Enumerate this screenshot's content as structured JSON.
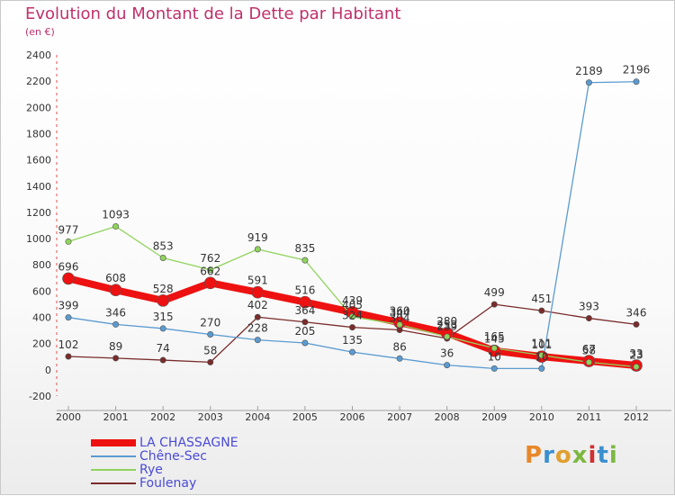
{
  "chart_data": {
    "type": "line",
    "title": "Evolution du Montant de la Dette par Habitant",
    "subtitle": "(en €)",
    "x": [
      "2000",
      "2001",
      "2002",
      "2003",
      "2004",
      "2005",
      "2006",
      "2007",
      "2008",
      "2009",
      "2010",
      "2011",
      "2012"
    ],
    "yticks": [
      "-200",
      "0",
      "200",
      "400",
      "600",
      "800",
      "1000",
      "1200",
      "1400",
      "1600",
      "1800",
      "2000",
      "2200",
      "2400"
    ],
    "ylim": [
      -200,
      2400
    ],
    "grid": false,
    "legend_position": "bottom-left",
    "series": [
      {
        "name": "LA CHASSAGNE",
        "color": "#ee1111",
        "values": [
          696,
          608,
          528,
          662,
          591,
          516,
          439,
          360,
          280,
          145,
          101,
          67,
          33
        ]
      },
      {
        "name": "Chêne-Sec",
        "color": "#5b9bd0",
        "values": [
          399,
          346,
          315,
          270,
          228,
          205,
          135,
          86,
          36,
          10,
          10,
          2189,
          2196
        ]
      },
      {
        "name": "Rye",
        "color": "#8fd35c",
        "values": [
          977,
          1093,
          853,
          762,
          919,
          835,
          405,
          344,
          253,
          165,
          111,
          58,
          23
        ]
      },
      {
        "name": "Foulenay",
        "color": "#7a2b2b",
        "values": [
          102,
          89,
          74,
          58,
          402,
          364,
          324,
          304,
          239,
          499,
          451,
          393,
          346
        ]
      }
    ]
  },
  "brand": {
    "letters": [
      "P",
      "r",
      "o",
      "x",
      "i",
      "t",
      "i"
    ]
  }
}
